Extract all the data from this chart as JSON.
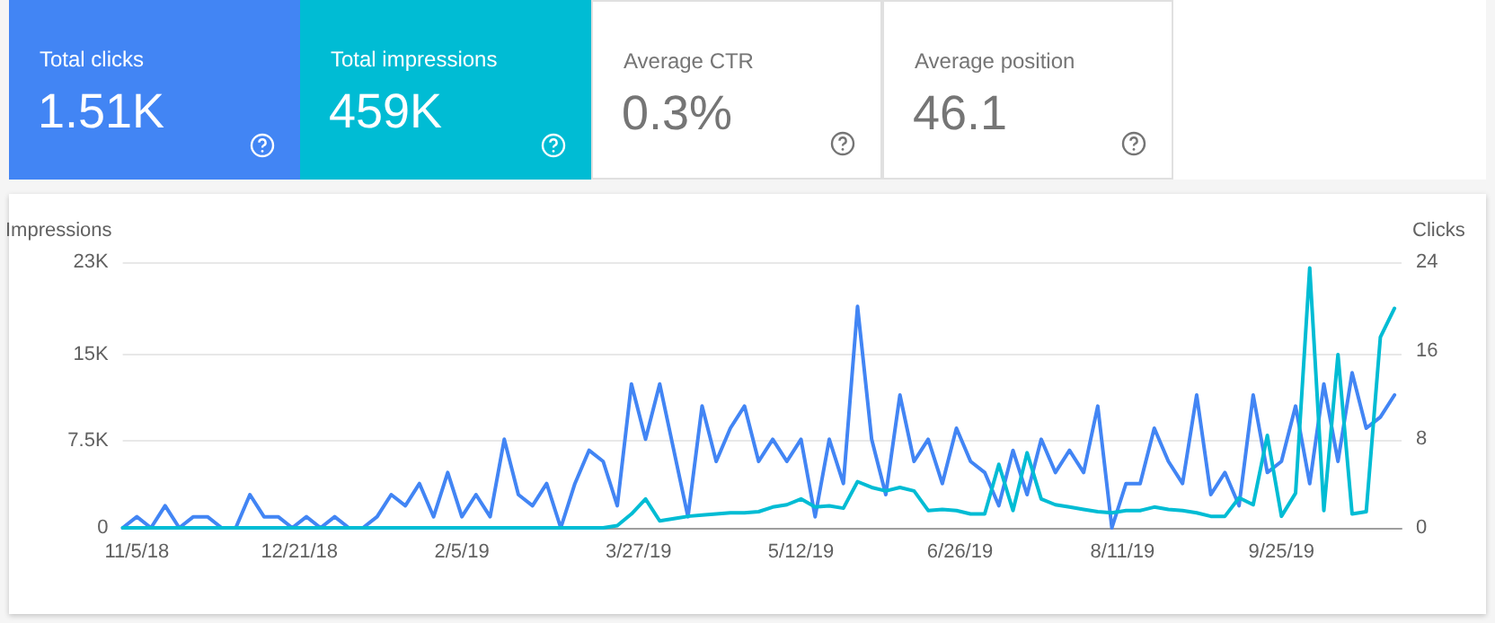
{
  "chart_data": [
    {
      "type": "other",
      "title": "Total clicks",
      "annotations": [
        "1.51K"
      ],
      "color": "#4285f4"
    },
    {
      "type": "other",
      "title": "Total impressions",
      "annotations": [
        "459K"
      ],
      "color": "#00bcd4"
    },
    {
      "type": "other",
      "title": "Average CTR",
      "annotations": [
        "0.3%"
      ],
      "color": "#ffffff"
    },
    {
      "type": "other",
      "title": "Average position",
      "annotations": [
        "46.1"
      ],
      "color": "#ffffff"
    },
    {
      "type": "line",
      "ylabel": "Impressions",
      "y2label": "Clicks",
      "grid": "y",
      "marker": "none",
      "line_style": "solid",
      "x": [
        "2018-11-01",
        "2018-11-05",
        "2018-11-09",
        "2018-11-13",
        "2018-11-17",
        "2018-11-21",
        "2018-11-25",
        "2018-11-29",
        "2018-12-03",
        "2018-12-07",
        "2018-12-11",
        "2018-12-15",
        "2018-12-19",
        "2018-12-23",
        "2018-12-27",
        "2018-12-31",
        "2019-01-04",
        "2019-01-08",
        "2019-01-12",
        "2019-01-16",
        "2019-01-20",
        "2019-01-24",
        "2019-01-28",
        "2019-02-01",
        "2019-02-05",
        "2019-02-09",
        "2019-02-13",
        "2019-02-17",
        "2019-02-21",
        "2019-02-25",
        "2019-03-01",
        "2019-03-05",
        "2019-03-09",
        "2019-03-13",
        "2019-03-17",
        "2019-03-21",
        "2019-03-25",
        "2019-03-29",
        "2019-04-02",
        "2019-04-06",
        "2019-04-10",
        "2019-04-14",
        "2019-04-18",
        "2019-04-22",
        "2019-04-26",
        "2019-04-30",
        "2019-05-04",
        "2019-05-08",
        "2019-05-12",
        "2019-05-16",
        "2019-05-20",
        "2019-05-24",
        "2019-05-28",
        "2019-06-01",
        "2019-06-05",
        "2019-06-09",
        "2019-06-13",
        "2019-06-17",
        "2019-06-21",
        "2019-06-25",
        "2019-06-29",
        "2019-07-03",
        "2019-07-07",
        "2019-07-11",
        "2019-07-15",
        "2019-07-19",
        "2019-07-23",
        "2019-07-27",
        "2019-07-31",
        "2019-08-04",
        "2019-08-08",
        "2019-08-12",
        "2019-08-16",
        "2019-08-20",
        "2019-08-24",
        "2019-08-28",
        "2019-09-01",
        "2019-09-05",
        "2019-09-09",
        "2019-09-13",
        "2019-09-17",
        "2019-09-21",
        "2019-09-25",
        "2019-09-29",
        "2019-10-03",
        "2019-10-07",
        "2019-10-11",
        "2019-10-15",
        "2019-10-19",
        "2019-10-23",
        "2019-10-27"
      ],
      "xlim": [
        "2018-11-01",
        "2019-10-29"
      ],
      "xticks": [
        {
          "value": "2018-11-05",
          "label": "11/5/18"
        },
        {
          "value": "2018-12-21",
          "label": "12/21/18"
        },
        {
          "value": "2019-02-05",
          "label": "2/5/19"
        },
        {
          "value": "2019-03-27",
          "label": "3/27/19"
        },
        {
          "value": "2019-05-12",
          "label": "5/12/19"
        },
        {
          "value": "2019-06-26",
          "label": "6/26/19"
        },
        {
          "value": "2019-08-11",
          "label": "8/11/19"
        },
        {
          "value": "2019-09-25",
          "label": "9/25/19"
        }
      ],
      "ylim": [
        0,
        23000
      ],
      "yticks": [
        0,
        {
          "value": 7500,
          "label": "7.5K"
        },
        {
          "value": 15000,
          "label": "15K"
        },
        {
          "value": 23000,
          "label": "23K"
        }
      ],
      "y2lim": [
        0,
        24
      ],
      "y2ticks": [
        0,
        8,
        16,
        24
      ],
      "series": [
        {
          "color": "#4285f4",
          "axis": "y2",
          "values": [
            0,
            1,
            0,
            2,
            0,
            1,
            1,
            0,
            0,
            3,
            1,
            1,
            0,
            1,
            0,
            1,
            0,
            0,
            1,
            3,
            2,
            4,
            1,
            5,
            1,
            3,
            1,
            8,
            3,
            2,
            4,
            0,
            4,
            7,
            6,
            2,
            13,
            8,
            13,
            7,
            1,
            11,
            6,
            9,
            11,
            6,
            8,
            6,
            8,
            1,
            8,
            4,
            20,
            8,
            3,
            12,
            6,
            8,
            4,
            9,
            6,
            5,
            2,
            7,
            3,
            8,
            5,
            7,
            5,
            11,
            0,
            4,
            4,
            9,
            6,
            4,
            12,
            3,
            5,
            2,
            12,
            5,
            6,
            11,
            4,
            13,
            6,
            14,
            9,
            10,
            12
          ]
        },
        {
          "color": "#00bcd4",
          "axis": "y",
          "values": [
            0,
            0,
            0,
            0,
            0,
            0,
            0,
            0,
            0,
            0,
            0,
            0,
            0,
            0,
            0,
            0,
            0,
            0,
            0,
            0,
            0,
            0,
            0,
            0,
            0,
            0,
            0,
            0,
            0,
            0,
            0,
            0,
            0,
            0,
            0,
            200,
            1200,
            2500,
            600,
            800,
            1000,
            1100,
            1200,
            1300,
            1300,
            1400,
            1800,
            2000,
            2500,
            1800,
            1900,
            1700,
            4000,
            3500,
            3200,
            3500,
            3200,
            1500,
            1600,
            1500,
            1200,
            1200,
            5500,
            1500,
            6500,
            2500,
            2000,
            1800,
            1600,
            1400,
            1300,
            1500,
            1500,
            1800,
            1600,
            1500,
            1300,
            1000,
            1000,
            2600,
            2000,
            8000,
            1000,
            3000,
            22500,
            1500,
            15000,
            1200,
            1400,
            16500,
            19000
          ]
        }
      ]
    }
  ]
}
